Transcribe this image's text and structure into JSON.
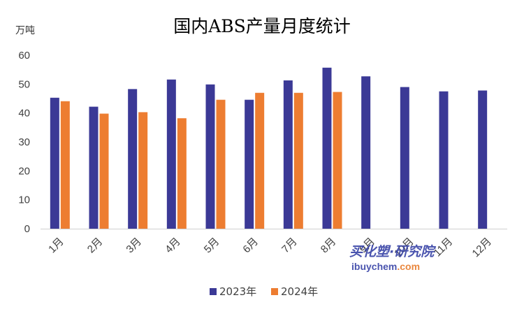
{
  "chart_data": {
    "type": "bar",
    "title": "国内ABS产量月度统计",
    "ylabel": "万吨",
    "xlabel": "",
    "ylim": [
      0,
      60
    ],
    "yticks": [
      0,
      10,
      20,
      30,
      40,
      50,
      60
    ],
    "grid": false,
    "legend_position": "bottom",
    "categories": [
      "1月",
      "2月",
      "3月",
      "4月",
      "5月",
      "6月",
      "7月",
      "8月",
      "9月",
      "10月",
      "11月",
      "12月"
    ],
    "series": [
      {
        "name": "2023年",
        "color": "#3b3996",
        "values": [
          45.3,
          42.2,
          48.3,
          51.6,
          49.9,
          44.6,
          51.3,
          55.7,
          52.7,
          49.0,
          47.5,
          47.8
        ]
      },
      {
        "name": "2024年",
        "color": "#ed7d31",
        "values": [
          44.1,
          39.8,
          40.3,
          38.2,
          44.6,
          47.0,
          47.0,
          47.3,
          null,
          null,
          null,
          null
        ]
      }
    ]
  },
  "watermark": {
    "cn": "买化塑·研究院",
    "en_part1": "ibuychem",
    "en_part2": ".com"
  }
}
